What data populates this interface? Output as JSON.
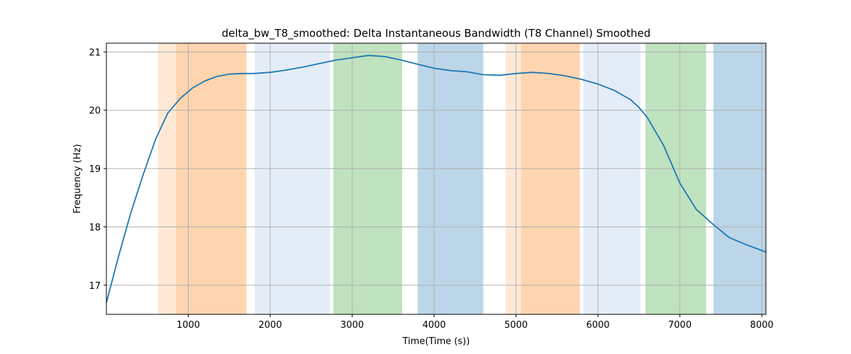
{
  "chart_data": {
    "type": "line",
    "title": "delta_bw_T8_smoothed: Delta Instantaneous Bandwidth (T8 Channel) Smoothed",
    "xlabel": "Time(Time (s))",
    "ylabel": "Frequency (Hz)",
    "xlim": [
      0,
      8050
    ],
    "ylim": [
      16.5,
      21.15
    ],
    "xticks": [
      1000,
      2000,
      3000,
      4000,
      5000,
      6000,
      7000,
      8000
    ],
    "yticks": [
      17,
      18,
      19,
      20,
      21
    ],
    "grid": true,
    "series": [
      {
        "color": "#1f77b4",
        "x": [
          0,
          150,
          300,
          450,
          600,
          750,
          900,
          1050,
          1200,
          1350,
          1500,
          1650,
          1800,
          2000,
          2200,
          2400,
          2600,
          2800,
          3000,
          3200,
          3400,
          3600,
          3800,
          4000,
          4200,
          4400,
          4600,
          4800,
          5000,
          5200,
          5400,
          5600,
          5800,
          6000,
          6200,
          6400,
          6500,
          6600,
          6800,
          7000,
          7200,
          7400,
          7600,
          7800,
          8050
        ],
        "y": [
          16.7,
          17.5,
          18.25,
          18.9,
          19.5,
          19.95,
          20.2,
          20.38,
          20.5,
          20.58,
          20.62,
          20.63,
          20.63,
          20.65,
          20.69,
          20.74,
          20.8,
          20.86,
          20.9,
          20.94,
          20.92,
          20.86,
          20.79,
          20.72,
          20.68,
          20.66,
          20.61,
          20.6,
          20.63,
          20.65,
          20.63,
          20.59,
          20.53,
          20.45,
          20.34,
          20.18,
          20.05,
          19.88,
          19.4,
          18.75,
          18.3,
          18.05,
          17.82,
          17.7,
          17.57
        ]
      }
    ],
    "bands": [
      {
        "x0": 630,
        "x1": 850,
        "color": "#ff7f0e",
        "opacity": 0.17
      },
      {
        "x0": 850,
        "x1": 1710,
        "color": "#ff7f0e",
        "opacity": 0.33
      },
      {
        "x0": 1810,
        "x1": 2730,
        "color": "#aec7e8",
        "opacity": 0.33
      },
      {
        "x0": 2770,
        "x1": 3610,
        "color": "#2ca02c",
        "opacity": 0.3
      },
      {
        "x0": 3800,
        "x1": 4600,
        "color": "#1f77b4",
        "opacity": 0.3
      },
      {
        "x0": 4870,
        "x1": 5060,
        "color": "#ff7f0e",
        "opacity": 0.17
      },
      {
        "x0": 5060,
        "x1": 5780,
        "color": "#ff7f0e",
        "opacity": 0.33
      },
      {
        "x0": 5820,
        "x1": 6520,
        "color": "#aec7e8",
        "opacity": 0.33
      },
      {
        "x0": 6580,
        "x1": 7320,
        "color": "#2ca02c",
        "opacity": 0.3
      },
      {
        "x0": 7410,
        "x1": 8050,
        "color": "#1f77b4",
        "opacity": 0.3
      }
    ]
  }
}
